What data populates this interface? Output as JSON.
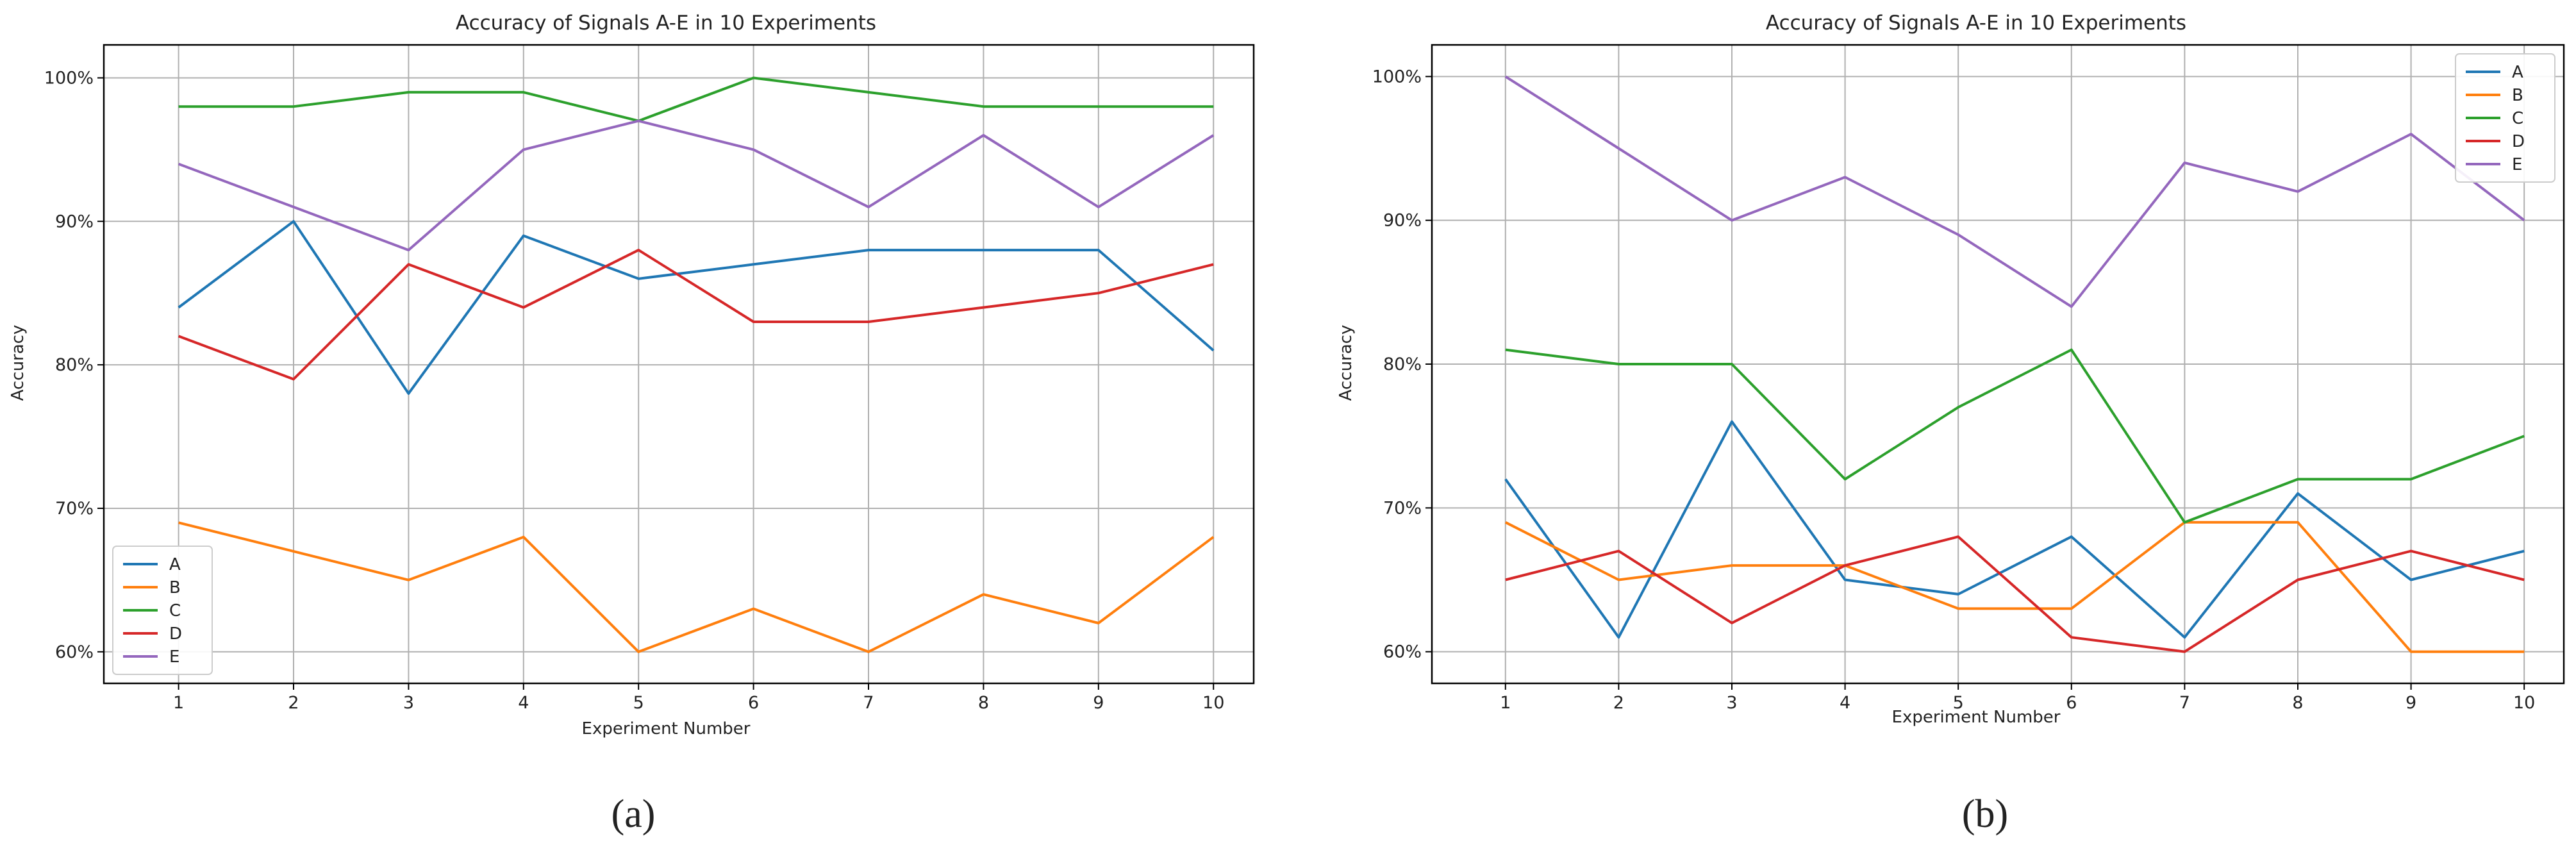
{
  "chart_data": [
    {
      "type": "line",
      "title": "Accuracy of Signals A-E in 10 Experiments",
      "xlabel": "Experiment Number",
      "ylabel": "Accuracy",
      "caption": "(a)",
      "x": [
        1,
        2,
        3,
        4,
        5,
        6,
        7,
        8,
        9,
        10
      ],
      "xlim": [
        0.35,
        10.35
      ],
      "ylim": [
        57.8,
        102.3
      ],
      "yticks": [
        60,
        70,
        80,
        90,
        100
      ],
      "ytick_labels": [
        "60%",
        "70%",
        "80%",
        "90%",
        "100%"
      ],
      "grid": true,
      "legend_position": "lower-left",
      "series": [
        {
          "name": "A",
          "color": "#1f77b4",
          "values": [
            84,
            90,
            78,
            89,
            86,
            87,
            88,
            88,
            88,
            81
          ]
        },
        {
          "name": "B",
          "color": "#ff7f0e",
          "values": [
            69,
            67,
            65,
            68,
            60,
            63,
            60,
            64,
            62,
            68
          ]
        },
        {
          "name": "C",
          "color": "#2ca02c",
          "values": [
            98,
            98,
            99,
            99,
            97,
            100,
            99,
            98,
            98,
            98
          ]
        },
        {
          "name": "D",
          "color": "#d62728",
          "values": [
            82,
            79,
            87,
            84,
            88,
            83,
            83,
            84,
            85,
            87
          ]
        },
        {
          "name": "E",
          "color": "#9467bd",
          "values": [
            94,
            91,
            88,
            95,
            97,
            95,
            91,
            96,
            91,
            96
          ]
        }
      ]
    },
    {
      "type": "line",
      "title": "Accuracy of Signals A-E in 10 Experiments",
      "xlabel": "Experiment Number",
      "ylabel": "Accuracy",
      "caption": "(b)",
      "x": [
        1,
        2,
        3,
        4,
        5,
        6,
        7,
        8,
        9,
        10
      ],
      "xlim": [
        0.35,
        10.35
      ],
      "ylim": [
        57.8,
        102.2
      ],
      "yticks": [
        60,
        70,
        80,
        90,
        100
      ],
      "ytick_labels": [
        "60%",
        "70%",
        "80%",
        "90%",
        "100%"
      ],
      "grid": true,
      "legend_position": "upper-right",
      "series": [
        {
          "name": "A",
          "color": "#1f77b4",
          "values": [
            72,
            61,
            76,
            65,
            64,
            68,
            61,
            71,
            65,
            67
          ]
        },
        {
          "name": "B",
          "color": "#ff7f0e",
          "values": [
            69,
            65,
            66,
            66,
            63,
            63,
            69,
            69,
            60,
            60
          ]
        },
        {
          "name": "C",
          "color": "#2ca02c",
          "values": [
            81,
            80,
            80,
            72,
            77,
            81,
            69,
            72,
            72,
            75
          ]
        },
        {
          "name": "D",
          "color": "#d62728",
          "values": [
            65,
            67,
            62,
            66,
            68,
            61,
            60,
            65,
            67,
            65
          ]
        },
        {
          "name": "E",
          "color": "#9467bd",
          "values": [
            100,
            95,
            90,
            93,
            89,
            84,
            94,
            92,
            96,
            90
          ]
        }
      ]
    }
  ]
}
